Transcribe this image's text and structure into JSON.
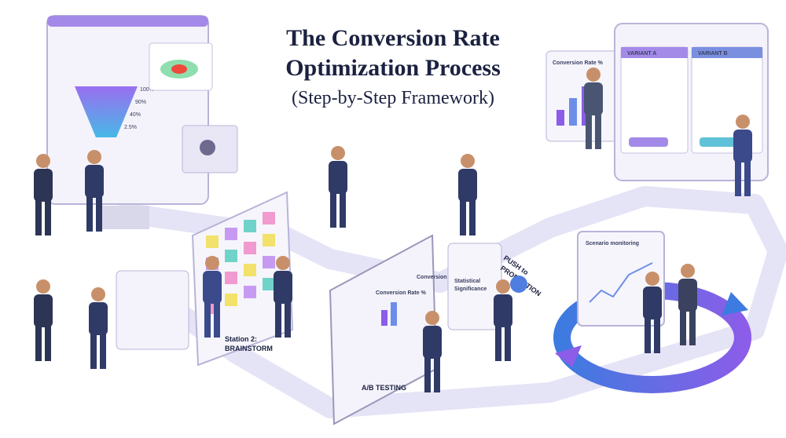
{
  "header": {
    "title_lines": [
      "The Conversion Rate",
      "Optimization Process"
    ],
    "subtitle": "(Step-by-Step Framework)"
  },
  "funnel": {
    "labels": [
      "100%",
      "90%",
      "40%",
      "2.5%"
    ]
  },
  "variant_screen": {
    "chart_title": "Conversion Rate %",
    "variant_a": "VARIANT A",
    "variant_b": "VARIANT B"
  },
  "brainstorm": {
    "label_lines": [
      "Station 2:",
      "BRAINSTORM"
    ]
  },
  "ab_testing": {
    "label": "A/B TESTING",
    "chart_title_a": "Conversion Rate %",
    "chart_title_b": "Conversion Rate %"
  },
  "significance": {
    "label_lines": [
      "Statistical",
      "Significance"
    ]
  },
  "production": {
    "label_lines": [
      "PUSH to",
      "PRODUCTION"
    ]
  },
  "monitoring": {
    "label": "Scenario monitoring"
  }
}
